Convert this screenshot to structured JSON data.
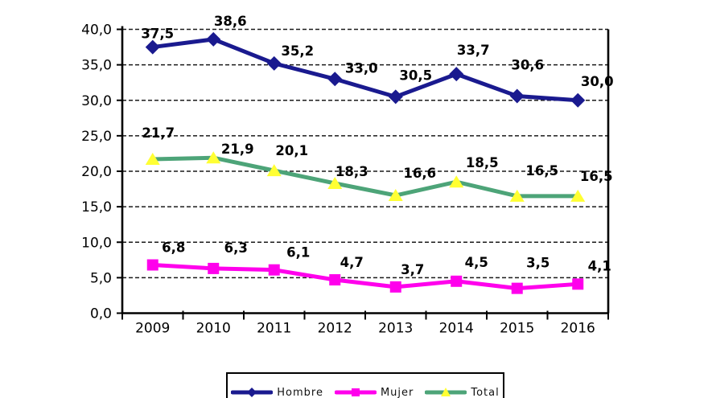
{
  "chart_data": {
    "type": "line",
    "title": "",
    "xlabel": "",
    "ylabel": "",
    "categories": [
      "2009",
      "2010",
      "2011",
      "2012",
      "2013",
      "2014",
      "2015",
      "2016"
    ],
    "series": [
      {
        "name": "Hombre",
        "color": "#1A1A8F",
        "marker": "diamond",
        "marker_color": "#1A1A8F",
        "values": [
          37.5,
          38.6,
          35.2,
          33.0,
          30.5,
          33.7,
          30.6,
          30.0
        ],
        "labels": [
          "37,5",
          "38,6",
          "35,2",
          "33,0",
          "30,5",
          "33,7",
          "30,6",
          "30,0"
        ]
      },
      {
        "name": "Mujer",
        "color": "#FF00EC",
        "marker": "square",
        "marker_color": "#FF00EC",
        "values": [
          6.8,
          6.3,
          6.1,
          4.7,
          3.7,
          4.5,
          3.5,
          4.1
        ],
        "labels": [
          "6,8",
          "6,3",
          "6,1",
          "4,7",
          "3,7",
          "4,5",
          "3,5",
          "4,1"
        ]
      },
      {
        "name": "Total",
        "color": "#4DA478",
        "marker": "triangle",
        "marker_color": "#FFFF33",
        "values": [
          21.7,
          21.9,
          20.1,
          18.3,
          16.6,
          18.5,
          16.5,
          16.5
        ],
        "labels": [
          "21,7",
          "21,9",
          "20,1",
          "18,3",
          "16,6",
          "18,5",
          "16,5",
          "16,5"
        ]
      }
    ],
    "ylim": [
      0,
      40
    ],
    "y_tick_step": 5,
    "y_tick_labels": [
      "40,0",
      "35,0",
      "30,0",
      "25,0",
      "20,0",
      "15,0",
      "10,0",
      "5,0",
      "0,0"
    ],
    "grid": "horizontal-dashed",
    "legend_position": "bottom",
    "axis_color": "#000000",
    "gridline_color": "#1a1a1a",
    "label_color": "#000000"
  }
}
